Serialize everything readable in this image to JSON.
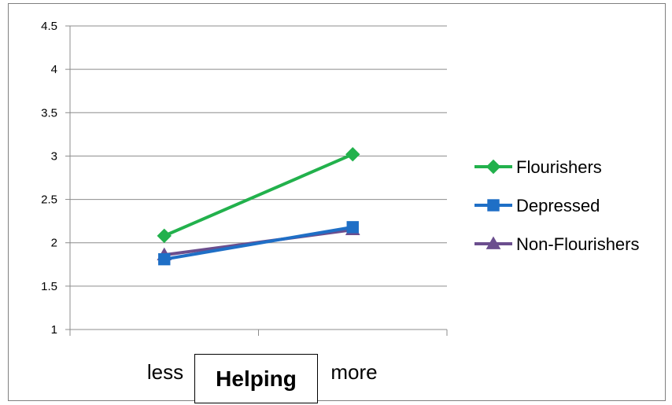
{
  "chart_data": {
    "type": "line",
    "categories": [
      "less",
      "more"
    ],
    "series": [
      {
        "name": "Flourishers",
        "values": [
          2.08,
          3.02
        ],
        "color": "#22b14c",
        "marker": "diamond"
      },
      {
        "name": "Depressed",
        "values": [
          1.81,
          2.18
        ],
        "color": "#1f6fc6",
        "marker": "square"
      },
      {
        "name": "Non-Flourishers",
        "values": [
          1.86,
          2.15
        ],
        "color": "#6b4e8e",
        "marker": "triangle"
      }
    ],
    "xlabel": "Helping",
    "ylabel": "",
    "ylim": [
      1,
      4.5
    ],
    "yticks": [
      "1",
      "1.5",
      "2",
      "2.5",
      "3",
      "3.5",
      "4",
      "4.5"
    ],
    "grid": "horizontal",
    "legend": "right"
  }
}
